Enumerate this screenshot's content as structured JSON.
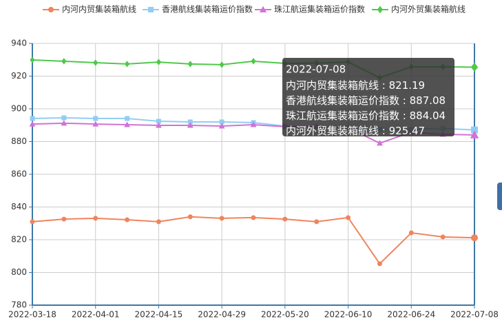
{
  "chart_data": {
    "type": "line",
    "categories": [
      "2022-03-18",
      null,
      "2022-04-01",
      null,
      "2022-04-15",
      null,
      "2022-04-29",
      null,
      "2022-05-20",
      null,
      "2022-06-10",
      null,
      "2022-06-24",
      null,
      "2022-07-08"
    ],
    "series": [
      {
        "name": "内河内贸集装箱航线",
        "color": "#f0845c",
        "marker": "circle",
        "values": [
          831.0,
          832.6,
          833.1,
          832.2,
          831.0,
          834.0,
          833.1,
          833.5,
          832.6,
          831.0,
          833.5,
          805.3,
          824.2,
          821.7,
          821.19
        ]
      },
      {
        "name": "香港航线集装箱运价指数",
        "color": "#91cdf5",
        "marker": "square",
        "values": [
          894.1,
          894.5,
          894.1,
          894.1,
          892.4,
          892.0,
          892.0,
          891.6,
          889.5,
          889.0,
          888.5,
          887.5,
          887.5,
          888.0,
          887.08
        ]
      },
      {
        "name": "珠江航运集装箱运价指数",
        "color": "#d272d6",
        "marker": "triangle",
        "values": [
          890.7,
          891.2,
          890.7,
          890.3,
          889.9,
          889.9,
          889.5,
          890.3,
          889.1,
          889.0,
          888.5,
          879.0,
          885.7,
          884.4,
          884.04
        ]
      },
      {
        "name": "内河外贸集装箱航线",
        "color": "#4ec94a",
        "marker": "diamond",
        "values": [
          929.9,
          929.1,
          928.2,
          927.4,
          928.6,
          927.4,
          927.0,
          929.1,
          927.8,
          928.0,
          928.6,
          919.0,
          925.7,
          925.7,
          925.47
        ]
      }
    ],
    "ylim": [
      780,
      940
    ],
    "yticks": [
      780,
      800,
      820,
      840,
      860,
      880,
      900,
      920,
      940
    ],
    "grid": true,
    "legend": "top",
    "tooltip": {
      "index": 14
    }
  }
}
